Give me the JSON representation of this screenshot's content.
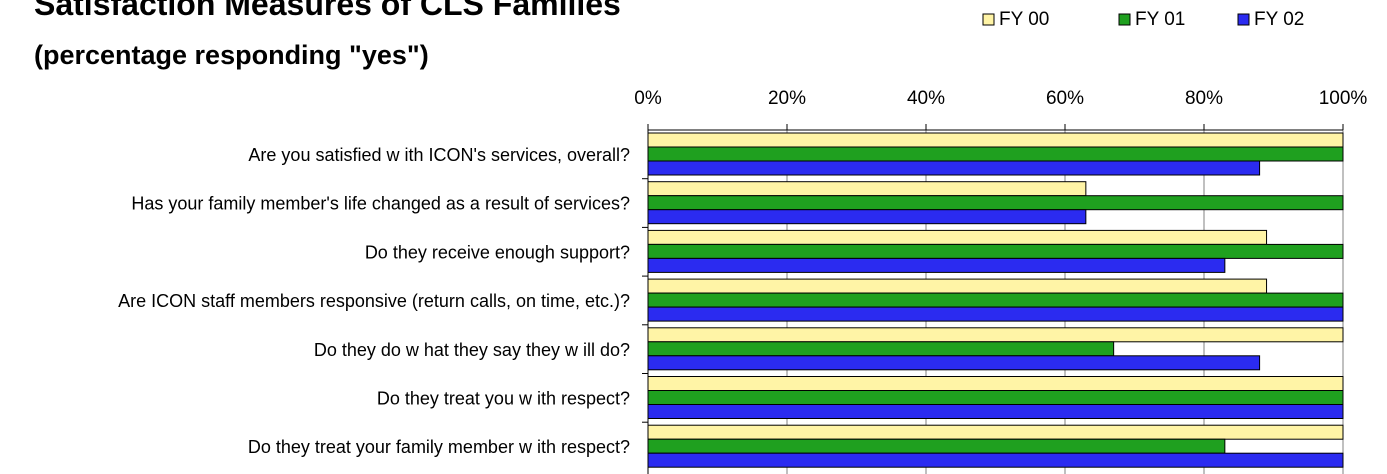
{
  "chart_data": {
    "type": "bar",
    "orientation": "horizontal",
    "title": "Satisfaction Measures of CLS Families",
    "subtitle": "(percentage responding \"yes\")",
    "categories": [
      "Are you satisfied w ith ICON's services, overall?",
      "Has your family member's life changed as a result of services?",
      "Do they receive enough support?",
      "Are ICON staff members responsive (return calls, on time, etc.)?",
      "Do they do w hat they say they w ill do?",
      "Do they treat you w ith respect?",
      "Do they treat your family member w ith respect?"
    ],
    "series": [
      {
        "name": "FY 00",
        "color": "#FFF4A6",
        "values": [
          100,
          63,
          89,
          89,
          100,
          100,
          100
        ]
      },
      {
        "name": "FY 01",
        "color": "#1FA01F",
        "values": [
          100,
          100,
          100,
          100,
          67,
          100,
          83
        ]
      },
      {
        "name": "FY 02",
        "color": "#2B2BF0",
        "values": [
          88,
          63,
          83,
          100,
          88,
          100,
          100
        ]
      }
    ],
    "xlim": [
      0,
      100
    ],
    "ticks": [
      "0%",
      "20%",
      "40%",
      "60%",
      "80%",
      "100%"
    ],
    "tick_values": [
      0,
      20,
      40,
      60,
      80,
      100
    ],
    "grid": true,
    "legend_position": "top-right"
  }
}
